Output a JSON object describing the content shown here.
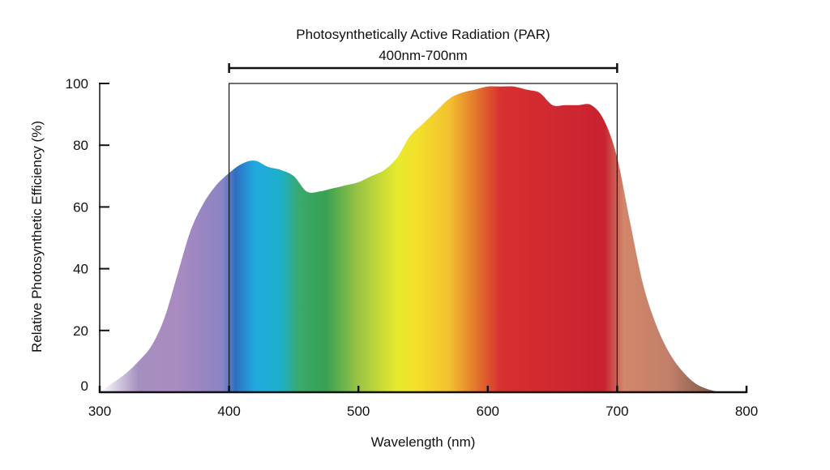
{
  "chart_data": {
    "type": "area",
    "title": "",
    "xlabel": "Wavelength (nm)",
    "ylabel": "Relative Photosynthetic Efficiency (%)",
    "xlim": [
      300,
      800
    ],
    "ylim": [
      0,
      100
    ],
    "x_ticks": [
      "300",
      "400",
      "500",
      "600",
      "700",
      "800"
    ],
    "y_ticks": [
      "0",
      "20",
      "40",
      "60",
      "80",
      "100"
    ],
    "grid": false,
    "legend": "none",
    "fill": "visible-spectrum-gradient",
    "annotation": {
      "line1": "Photosynthetically Active Radiation (PAR)",
      "line2": "400nm-700nm",
      "range": [
        400,
        700
      ]
    },
    "x": [
      300,
      310,
      320,
      330,
      340,
      350,
      360,
      370,
      380,
      390,
      400,
      410,
      420,
      430,
      440,
      450,
      460,
      470,
      480,
      490,
      500,
      510,
      520,
      530,
      540,
      550,
      560,
      570,
      580,
      590,
      600,
      610,
      620,
      630,
      640,
      650,
      660,
      670,
      680,
      690,
      700,
      710,
      720,
      730,
      740,
      750,
      760,
      770,
      780
    ],
    "values": [
      0,
      3,
      6,
      10,
      15,
      24,
      38,
      52,
      61,
      67,
      71,
      74,
      75,
      73,
      72,
      70,
      65,
      65,
      66,
      67,
      68,
      70,
      72,
      76,
      83,
      87,
      91,
      95,
      97,
      98,
      99,
      99,
      99,
      98,
      97,
      93,
      93,
      93,
      93,
      88,
      76,
      55,
      35,
      22,
      13,
      7,
      3,
      1,
      0
    ]
  },
  "colors": {
    "axis": "#111111",
    "stops": [
      {
        "nm": 300,
        "color": "#ffffff"
      },
      {
        "nm": 330,
        "color": "#a58fbe"
      },
      {
        "nm": 360,
        "color": "#a98bc1"
      },
      {
        "nm": 395,
        "color": "#8b83c2"
      },
      {
        "nm": 405,
        "color": "#2e6fc2"
      },
      {
        "nm": 420,
        "color": "#21a9df"
      },
      {
        "nm": 440,
        "color": "#1dafc9"
      },
      {
        "nm": 455,
        "color": "#3aa96a"
      },
      {
        "nm": 475,
        "color": "#37a152"
      },
      {
        "nm": 500,
        "color": "#9cc444"
      },
      {
        "nm": 530,
        "color": "#e6ea2c"
      },
      {
        "nm": 545,
        "color": "#f3e02b"
      },
      {
        "nm": 570,
        "color": "#f3c230"
      },
      {
        "nm": 590,
        "color": "#e27a2c"
      },
      {
        "nm": 610,
        "color": "#d7302f"
      },
      {
        "nm": 690,
        "color": "#c92230"
      },
      {
        "nm": 705,
        "color": "#d1876a"
      },
      {
        "nm": 740,
        "color": "#c37f6a"
      },
      {
        "nm": 770,
        "color": "#86604f"
      },
      {
        "nm": 785,
        "color": "#6e5a50"
      }
    ]
  }
}
